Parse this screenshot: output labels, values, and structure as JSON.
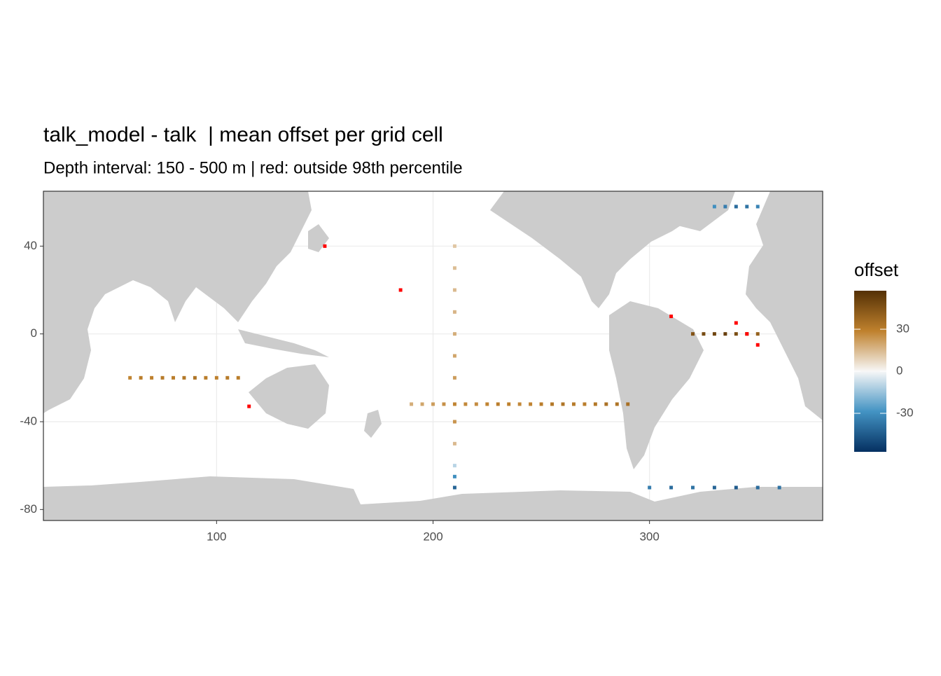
{
  "chart_data": {
    "type": "tile",
    "title": "talk_model - talk  | mean offset per grid cell",
    "subtitle": "Depth interval: 150 - 500 m | red: outside 98th percentile",
    "x": [
      190,
      195,
      200,
      205,
      210,
      215,
      220,
      225,
      230,
      235,
      240,
      245,
      250,
      255,
      260,
      265,
      270,
      275,
      280,
      285,
      290,
      210,
      210,
      210,
      210,
      210,
      210,
      210,
      210,
      210,
      210,
      210,
      210,
      320,
      325,
      330,
      335,
      340,
      345,
      350,
      60,
      65,
      70,
      75,
      80,
      85,
      90,
      95,
      100,
      105,
      110,
      300,
      310,
      320,
      330,
      340,
      350,
      360,
      330,
      335,
      340,
      345,
      350
    ],
    "y": [
      -32,
      -32,
      -32,
      -32,
      -32,
      -32,
      -32,
      -32,
      -32,
      -32,
      -32,
      -32,
      -32,
      -32,
      -32,
      -32,
      -32,
      -32,
      -32,
      -32,
      -32,
      40,
      30,
      20,
      10,
      0,
      -10,
      -20,
      -40,
      -50,
      -60,
      -65,
      -70,
      0,
      0,
      0,
      0,
      0,
      0,
      0,
      -20,
      -20,
      -20,
      -20,
      -20,
      -20,
      -20,
      -20,
      -20,
      -20,
      -20,
      -70,
      -70,
      -70,
      -70,
      -70,
      -70,
      -70,
      58,
      58,
      58,
      58,
      58
    ],
    "values": [
      18,
      20,
      22,
      25,
      28,
      27,
      26,
      28,
      30,
      29,
      27,
      28,
      30,
      32,
      33,
      31,
      30,
      32,
      34,
      33,
      35,
      12,
      14,
      15,
      16,
      18,
      20,
      22,
      24,
      15,
      -10,
      -30,
      -42,
      45,
      48,
      50,
      52,
      47,
      44,
      40,
      28,
      30,
      29,
      31,
      30,
      32,
      33,
      30,
      29,
      31,
      30,
      -35,
      -40,
      -38,
      -42,
      -45,
      -40,
      -38,
      -30,
      -35,
      -40,
      -38,
      -33
    ],
    "outliers": {
      "x": [
        340,
        345,
        350,
        115,
        150,
        185,
        310
      ],
      "y": [
        5,
        0,
        -5,
        -33,
        40,
        20,
        8
      ],
      "color": "#ff0000"
    },
    "xlim": [
      20,
      380
    ],
    "xticks": [
      100,
      200,
      300
    ],
    "ylim": [
      -85,
      65
    ],
    "yticks": [
      -80,
      -40,
      0,
      40
    ],
    "grid": true,
    "legend_title": "offset",
    "colorscale": [
      "#053061",
      "#4393c3",
      "#f7f7f7",
      "#bf812d",
      "#543005"
    ],
    "colorlim": [
      -57.5,
      57.5
    ],
    "legend_ticks": [
      -30,
      0,
      30
    ]
  }
}
